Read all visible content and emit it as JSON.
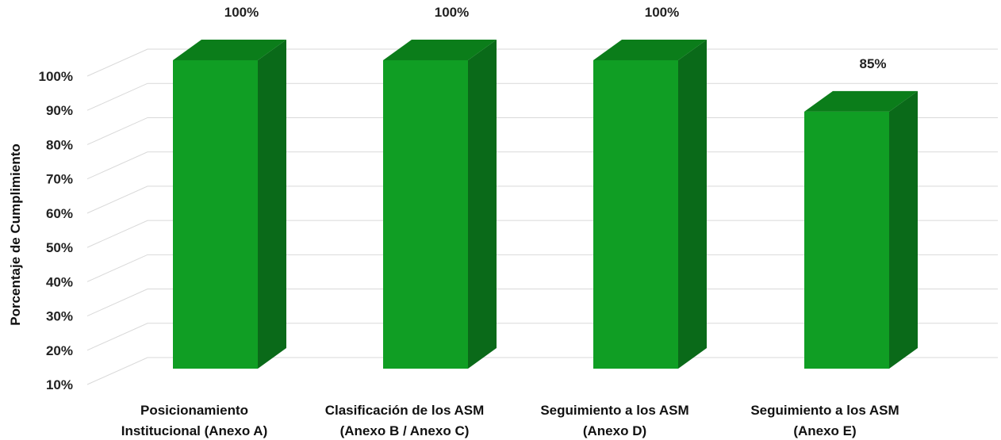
{
  "chart_data": {
    "type": "bar",
    "title": "",
    "xlabel": "",
    "ylabel": "Porcentaje de Cumplimiento",
    "ylim": [
      10,
      100
    ],
    "yticks": [
      "10%",
      "20%",
      "30%",
      "40%",
      "50%",
      "60%",
      "70%",
      "80%",
      "90%",
      "100%"
    ],
    "grid": true,
    "legend": "none",
    "categories": [
      [
        "Posicionamiento",
        "Institucional (Anexo A)"
      ],
      [
        "Clasificación de los ASM",
        "(Anexo B / Anexo C)"
      ],
      [
        "Seguimiento a los ASM",
        "(Anexo D)"
      ],
      [
        "Seguimiento a los ASM",
        "(Anexo E)"
      ]
    ],
    "values": [
      100,
      100,
      100,
      85
    ],
    "data_labels": [
      "100%",
      "100%",
      "100%",
      "85%"
    ],
    "colors": {
      "front": "#109e24",
      "top": "#0b7d1a",
      "side": "#0a6a19",
      "grid": "#d9d9d9"
    }
  }
}
